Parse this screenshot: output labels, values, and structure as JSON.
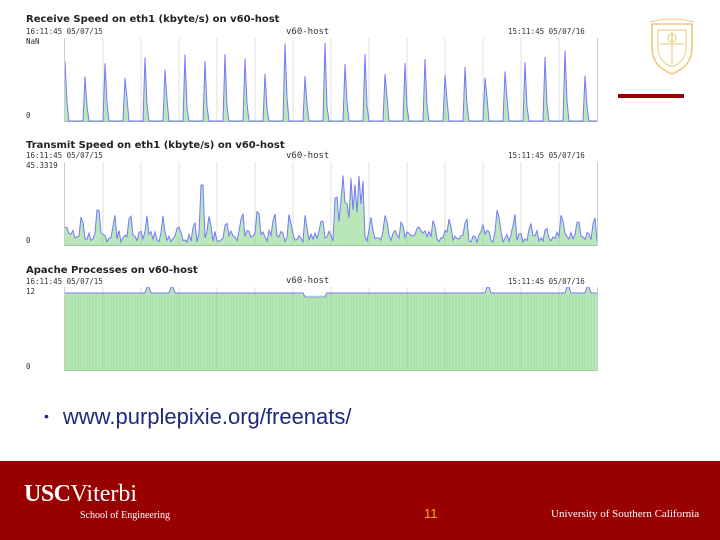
{
  "graphs": [
    {
      "title": "Receive Speed on eth1 (kbyte/s) on v60-host",
      "start": "16:11:45 05/07/15",
      "host": "v60-host",
      "end": "15:11:45 05/07/16",
      "max": "NaN",
      "min": "0",
      "color": "#7777ff",
      "fill": "#7fd47f"
    },
    {
      "title": "Transmit Speed on eth1 (kbyte/s) on v60-host",
      "start": "16:11:45 05/07/15",
      "host": "v60-host",
      "end": "15:11:45 05/07/16",
      "max": "45.3319",
      "min": "0",
      "color": "#7777ff",
      "fill": "#7fd47f"
    },
    {
      "title": "Apache Processes on v60-host",
      "start": "16:11:45 05/07/15",
      "host": "v60-host",
      "end": "15:11:45 05/07/16",
      "max": "12",
      "min": "0",
      "color": "#7777ff",
      "fill": "#7fd47f"
    }
  ],
  "bullet": "www.purplepixie.org/freenats/",
  "footer": {
    "usc": "USC",
    "viterbi": "Viterbi",
    "school": "School of Engineering",
    "page": "11",
    "university": "University of Southern California"
  }
}
